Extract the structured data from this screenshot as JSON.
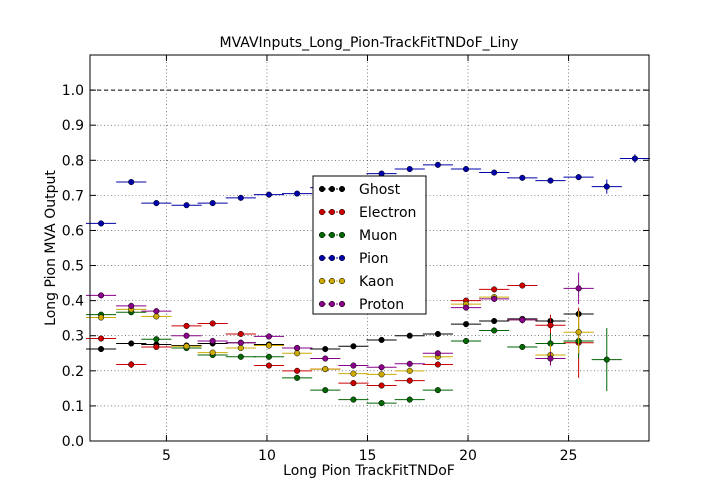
{
  "chart_data": {
    "type": "scatter",
    "title": "MVAVInputs_Long_Pion-TrackFitTNDoF_Liny",
    "xlabel": "Long Pion TrackFitTNDoF",
    "ylabel": "Long Pion MVA Output",
    "xlim": [
      1.2,
      29
    ],
    "ylim": [
      0.0,
      1.1
    ],
    "xticks": [
      5,
      10,
      15,
      20,
      25
    ],
    "xtick_labels": [
      "5",
      "10",
      "15",
      "20",
      "25"
    ],
    "yticks": [
      0.0,
      0.1,
      0.2,
      0.3,
      0.4,
      0.5,
      0.6,
      0.7,
      0.8,
      0.9,
      1.0
    ],
    "ytick_labels": [
      "0.0",
      "0.1",
      "0.2",
      "0.3",
      "0.4",
      "0.5",
      "0.6",
      "0.7",
      "0.8",
      "0.9",
      "1.0"
    ],
    "grid": true,
    "reference_line": 1.0,
    "legend_position": "center",
    "series": [
      {
        "name": "Ghost",
        "color": "#000000",
        "points": [
          {
            "x": 1.75,
            "y": 0.262,
            "xerr": 0.75,
            "yerr": 0.004
          },
          {
            "x": 3.25,
            "y": 0.278,
            "xerr": 0.75,
            "yerr": 0.004
          },
          {
            "x": 4.5,
            "y": 0.275,
            "xerr": 0.75,
            "yerr": 0.004
          },
          {
            "x": 6.0,
            "y": 0.272,
            "xerr": 0.75,
            "yerr": 0.004
          },
          {
            "x": 7.3,
            "y": 0.278,
            "xerr": 0.75,
            "yerr": 0.004
          },
          {
            "x": 8.7,
            "y": 0.28,
            "xerr": 0.75,
            "yerr": 0.004
          },
          {
            "x": 10.1,
            "y": 0.275,
            "xerr": 0.75,
            "yerr": 0.004
          },
          {
            "x": 11.5,
            "y": 0.265,
            "xerr": 0.75,
            "yerr": 0.004
          },
          {
            "x": 12.9,
            "y": 0.262,
            "xerr": 0.75,
            "yerr": 0.004
          },
          {
            "x": 14.3,
            "y": 0.27,
            "xerr": 0.75,
            "yerr": 0.005
          },
          {
            "x": 15.7,
            "y": 0.288,
            "xerr": 0.75,
            "yerr": 0.005
          },
          {
            "x": 17.1,
            "y": 0.3,
            "xerr": 0.75,
            "yerr": 0.005
          },
          {
            "x": 18.5,
            "y": 0.305,
            "xerr": 0.75,
            "yerr": 0.006
          },
          {
            "x": 19.9,
            "y": 0.333,
            "xerr": 0.75,
            "yerr": 0.006
          },
          {
            "x": 21.3,
            "y": 0.342,
            "xerr": 0.75,
            "yerr": 0.007
          },
          {
            "x": 22.7,
            "y": 0.348,
            "xerr": 0.75,
            "yerr": 0.008
          },
          {
            "x": 24.1,
            "y": 0.342,
            "xerr": 0.75,
            "yerr": 0.01
          },
          {
            "x": 25.5,
            "y": 0.362,
            "xerr": 0.75,
            "yerr": 0.012
          }
        ]
      },
      {
        "name": "Electron",
        "color": "#cc0000",
        "points": [
          {
            "x": 1.75,
            "y": 0.292,
            "xerr": 0.75,
            "yerr": 0.004
          },
          {
            "x": 3.25,
            "y": 0.218,
            "xerr": 0.75,
            "yerr": 0.01
          },
          {
            "x": 4.5,
            "y": 0.268,
            "xerr": 0.75,
            "yerr": 0.005
          },
          {
            "x": 6.0,
            "y": 0.328,
            "xerr": 0.75,
            "yerr": 0.005
          },
          {
            "x": 7.3,
            "y": 0.335,
            "xerr": 0.75,
            "yerr": 0.005
          },
          {
            "x": 8.7,
            "y": 0.305,
            "xerr": 0.75,
            "yerr": 0.005
          },
          {
            "x": 10.1,
            "y": 0.215,
            "xerr": 0.75,
            "yerr": 0.005
          },
          {
            "x": 11.5,
            "y": 0.2,
            "xerr": 0.75,
            "yerr": 0.005
          },
          {
            "x": 12.9,
            "y": 0.205,
            "xerr": 0.75,
            "yerr": 0.005
          },
          {
            "x": 14.3,
            "y": 0.165,
            "xerr": 0.75,
            "yerr": 0.005
          },
          {
            "x": 15.7,
            "y": 0.158,
            "xerr": 0.75,
            "yerr": 0.006
          },
          {
            "x": 17.1,
            "y": 0.172,
            "xerr": 0.75,
            "yerr": 0.006
          },
          {
            "x": 18.5,
            "y": 0.218,
            "xerr": 0.75,
            "yerr": 0.006
          },
          {
            "x": 19.9,
            "y": 0.4,
            "xerr": 0.75,
            "yerr": 0.008
          },
          {
            "x": 21.3,
            "y": 0.432,
            "xerr": 0.75,
            "yerr": 0.008
          },
          {
            "x": 22.7,
            "y": 0.443,
            "xerr": 0.75,
            "yerr": 0.008
          },
          {
            "x": 24.1,
            "y": 0.33,
            "xerr": 0.75,
            "yerr": 0.03
          },
          {
            "x": 25.5,
            "y": 0.28,
            "xerr": 0.75,
            "yerr": 0.1
          }
        ]
      },
      {
        "name": "Muon",
        "color": "#006600",
        "points": [
          {
            "x": 1.75,
            "y": 0.36,
            "xerr": 0.75,
            "yerr": 0.005
          },
          {
            "x": 3.25,
            "y": 0.367,
            "xerr": 0.75,
            "yerr": 0.005
          },
          {
            "x": 4.5,
            "y": 0.29,
            "xerr": 0.75,
            "yerr": 0.005
          },
          {
            "x": 6.0,
            "y": 0.265,
            "xerr": 0.75,
            "yerr": 0.005
          },
          {
            "x": 7.3,
            "y": 0.245,
            "xerr": 0.75,
            "yerr": 0.005
          },
          {
            "x": 8.7,
            "y": 0.24,
            "xerr": 0.75,
            "yerr": 0.005
          },
          {
            "x": 10.1,
            "y": 0.24,
            "xerr": 0.75,
            "yerr": 0.005
          },
          {
            "x": 11.5,
            "y": 0.18,
            "xerr": 0.75,
            "yerr": 0.005
          },
          {
            "x": 12.9,
            "y": 0.145,
            "xerr": 0.75,
            "yerr": 0.005
          },
          {
            "x": 14.3,
            "y": 0.118,
            "xerr": 0.75,
            "yerr": 0.005
          },
          {
            "x": 15.7,
            "y": 0.108,
            "xerr": 0.75,
            "yerr": 0.005
          },
          {
            "x": 17.1,
            "y": 0.118,
            "xerr": 0.75,
            "yerr": 0.005
          },
          {
            "x": 18.5,
            "y": 0.145,
            "xerr": 0.75,
            "yerr": 0.005
          },
          {
            "x": 19.9,
            "y": 0.285,
            "xerr": 0.75,
            "yerr": 0.006
          },
          {
            "x": 21.3,
            "y": 0.315,
            "xerr": 0.75,
            "yerr": 0.007
          },
          {
            "x": 22.7,
            "y": 0.268,
            "xerr": 0.75,
            "yerr": 0.008
          },
          {
            "x": 24.1,
            "y": 0.278,
            "xerr": 0.75,
            "yerr": 0.03
          },
          {
            "x": 25.5,
            "y": 0.285,
            "xerr": 0.75,
            "yerr": 0.05
          },
          {
            "x": 26.9,
            "y": 0.232,
            "xerr": 0.75,
            "yerr": 0.09
          }
        ]
      },
      {
        "name": "Pion",
        "color": "#0000aa",
        "points": [
          {
            "x": 1.75,
            "y": 0.62,
            "xerr": 0.75,
            "yerr": 0.004
          },
          {
            "x": 3.25,
            "y": 0.738,
            "xerr": 0.75,
            "yerr": 0.004
          },
          {
            "x": 4.5,
            "y": 0.678,
            "xerr": 0.75,
            "yerr": 0.004
          },
          {
            "x": 6.0,
            "y": 0.672,
            "xerr": 0.75,
            "yerr": 0.004
          },
          {
            "x": 7.3,
            "y": 0.678,
            "xerr": 0.75,
            "yerr": 0.004
          },
          {
            "x": 8.7,
            "y": 0.693,
            "xerr": 0.75,
            "yerr": 0.004
          },
          {
            "x": 10.1,
            "y": 0.702,
            "xerr": 0.75,
            "yerr": 0.004
          },
          {
            "x": 11.5,
            "y": 0.705,
            "xerr": 0.75,
            "yerr": 0.004
          },
          {
            "x": 12.9,
            "y": 0.722,
            "xerr": 0.75,
            "yerr": 0.004
          },
          {
            "x": 14.3,
            "y": 0.74,
            "xerr": 0.75,
            "yerr": 0.004
          },
          {
            "x": 15.7,
            "y": 0.762,
            "xerr": 0.75,
            "yerr": 0.004
          },
          {
            "x": 17.1,
            "y": 0.775,
            "xerr": 0.75,
            "yerr": 0.004
          },
          {
            "x": 18.5,
            "y": 0.787,
            "xerr": 0.75,
            "yerr": 0.004
          },
          {
            "x": 19.9,
            "y": 0.775,
            "xerr": 0.75,
            "yerr": 0.004
          },
          {
            "x": 21.3,
            "y": 0.765,
            "xerr": 0.75,
            "yerr": 0.005
          },
          {
            "x": 22.7,
            "y": 0.75,
            "xerr": 0.75,
            "yerr": 0.005
          },
          {
            "x": 24.1,
            "y": 0.742,
            "xerr": 0.75,
            "yerr": 0.006
          },
          {
            "x": 25.5,
            "y": 0.752,
            "xerr": 0.75,
            "yerr": 0.008
          },
          {
            "x": 26.9,
            "y": 0.725,
            "xerr": 0.75,
            "yerr": 0.02
          },
          {
            "x": 28.3,
            "y": 0.805,
            "xerr": 0.75,
            "yerr": 0.012
          }
        ]
      },
      {
        "name": "Kaon",
        "color": "#ccaa00",
        "points": [
          {
            "x": 1.75,
            "y": 0.352,
            "xerr": 0.75,
            "yerr": 0.005
          },
          {
            "x": 3.25,
            "y": 0.375,
            "xerr": 0.75,
            "yerr": 0.005
          },
          {
            "x": 4.5,
            "y": 0.355,
            "xerr": 0.75,
            "yerr": 0.005
          },
          {
            "x": 6.0,
            "y": 0.27,
            "xerr": 0.75,
            "yerr": 0.005
          },
          {
            "x": 7.3,
            "y": 0.252,
            "xerr": 0.75,
            "yerr": 0.005
          },
          {
            "x": 8.7,
            "y": 0.265,
            "xerr": 0.75,
            "yerr": 0.005
          },
          {
            "x": 10.1,
            "y": 0.272,
            "xerr": 0.75,
            "yerr": 0.005
          },
          {
            "x": 11.5,
            "y": 0.25,
            "xerr": 0.75,
            "yerr": 0.005
          },
          {
            "x": 12.9,
            "y": 0.205,
            "xerr": 0.75,
            "yerr": 0.005
          },
          {
            "x": 14.3,
            "y": 0.192,
            "xerr": 0.75,
            "yerr": 0.005
          },
          {
            "x": 15.7,
            "y": 0.19,
            "xerr": 0.75,
            "yerr": 0.005
          },
          {
            "x": 17.1,
            "y": 0.2,
            "xerr": 0.75,
            "yerr": 0.005
          },
          {
            "x": 18.5,
            "y": 0.24,
            "xerr": 0.75,
            "yerr": 0.006
          },
          {
            "x": 19.9,
            "y": 0.39,
            "xerr": 0.75,
            "yerr": 0.008
          },
          {
            "x": 21.3,
            "y": 0.41,
            "xerr": 0.75,
            "yerr": 0.009
          },
          {
            "x": 22.7,
            "y": 0.345,
            "xerr": 0.75,
            "yerr": 0.01
          },
          {
            "x": 24.1,
            "y": 0.245,
            "xerr": 0.75,
            "yerr": 0.03
          },
          {
            "x": 25.5,
            "y": 0.31,
            "xerr": 0.75,
            "yerr": 0.06
          }
        ]
      },
      {
        "name": "Proton",
        "color": "#880088",
        "points": [
          {
            "x": 1.75,
            "y": 0.415,
            "xerr": 0.75,
            "yerr": 0.005
          },
          {
            "x": 3.25,
            "y": 0.385,
            "xerr": 0.75,
            "yerr": 0.005
          },
          {
            "x": 4.5,
            "y": 0.37,
            "xerr": 0.75,
            "yerr": 0.005
          },
          {
            "x": 6.0,
            "y": 0.3,
            "xerr": 0.75,
            "yerr": 0.005
          },
          {
            "x": 7.3,
            "y": 0.285,
            "xerr": 0.75,
            "yerr": 0.005
          },
          {
            "x": 8.7,
            "y": 0.28,
            "xerr": 0.75,
            "yerr": 0.005
          },
          {
            "x": 10.1,
            "y": 0.298,
            "xerr": 0.75,
            "yerr": 0.005
          },
          {
            "x": 11.5,
            "y": 0.265,
            "xerr": 0.75,
            "yerr": 0.005
          },
          {
            "x": 12.9,
            "y": 0.235,
            "xerr": 0.75,
            "yerr": 0.005
          },
          {
            "x": 14.3,
            "y": 0.215,
            "xerr": 0.75,
            "yerr": 0.005
          },
          {
            "x": 15.7,
            "y": 0.21,
            "xerr": 0.75,
            "yerr": 0.005
          },
          {
            "x": 17.1,
            "y": 0.22,
            "xerr": 0.75,
            "yerr": 0.005
          },
          {
            "x": 18.5,
            "y": 0.25,
            "xerr": 0.75,
            "yerr": 0.006
          },
          {
            "x": 19.9,
            "y": 0.38,
            "xerr": 0.75,
            "yerr": 0.008
          },
          {
            "x": 21.3,
            "y": 0.405,
            "xerr": 0.75,
            "yerr": 0.009
          },
          {
            "x": 22.7,
            "y": 0.345,
            "xerr": 0.75,
            "yerr": 0.01
          },
          {
            "x": 24.1,
            "y": 0.235,
            "xerr": 0.75,
            "yerr": 0.02
          },
          {
            "x": 25.5,
            "y": 0.435,
            "xerr": 0.75,
            "yerr": 0.045
          }
        ]
      }
    ]
  }
}
